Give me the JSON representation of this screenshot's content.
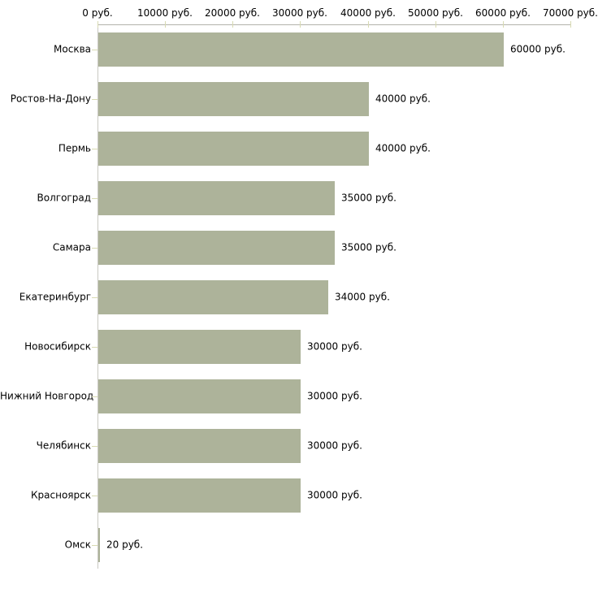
{
  "chart_data": {
    "type": "bar",
    "orientation": "horizontal",
    "title": "",
    "xlabel": "",
    "ylabel": "",
    "categories": [
      "Москва",
      "Ростов-На-Дону",
      "Пермь",
      "Волгоград",
      "Самара",
      "Екатеринбург",
      "Новосибирск",
      "Нижний Новгород",
      "Челябинск",
      "Красноярск",
      "Омск"
    ],
    "values": [
      60000,
      40000,
      40000,
      35000,
      35000,
      34000,
      30000,
      30000,
      30000,
      30000,
      20
    ],
    "value_labels": [
      "60000 руб.",
      "40000 руб.",
      "40000 руб.",
      "35000 руб.",
      "35000 руб.",
      "34000 руб.",
      "30000 руб.",
      "30000 руб.",
      "30000 руб.",
      "30000 руб.",
      "20 руб."
    ],
    "x_axis": {
      "position": "top",
      "min": 0,
      "max": 70000,
      "ticks": [
        0,
        10000,
        20000,
        30000,
        40000,
        50000,
        60000,
        70000
      ],
      "tick_labels": [
        "0 руб.",
        "10000 руб.",
        "20000 руб.",
        "30000 руб.",
        "40000 руб.",
        "50000 руб.",
        "60000 руб.",
        "70000 руб."
      ]
    },
    "legend": null,
    "grid": false,
    "colors": {
      "bar": "#adb39a",
      "x_axis_line": "#b3b2ab",
      "y_axis_line": "#c9c8c2",
      "tick": "#d8dab2",
      "text": "#000000",
      "background": "#ffffff"
    }
  }
}
